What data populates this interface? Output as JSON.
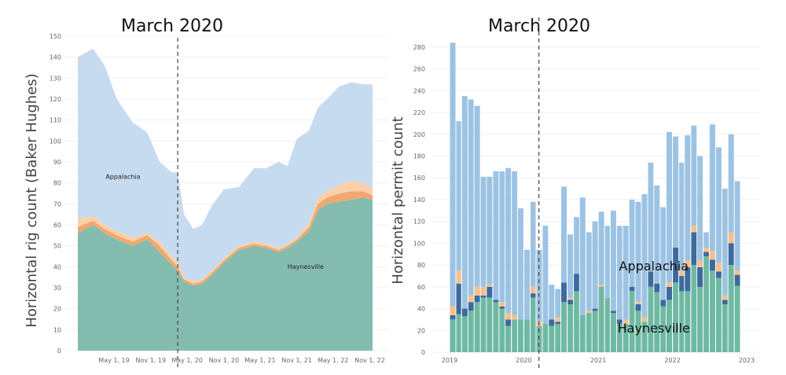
{
  "chart_data": [
    {
      "type": "area",
      "title": "March 2020",
      "ylabel": "Horizontal rig count (Baker Hughes)",
      "xlabel": "",
      "x_range": [
        "2018-11-01",
        "2022-11-15"
      ],
      "ylim": [
        0,
        150
      ],
      "yticks": [
        0,
        10,
        20,
        30,
        40,
        50,
        60,
        70,
        80,
        90,
        100,
        110,
        120,
        130,
        140,
        150
      ],
      "xticks": [
        {
          "date": "2019-05-01",
          "label": "May 1, 19"
        },
        {
          "date": "2019-11-01",
          "label": "Nov 1, 19"
        },
        {
          "date": "2020-05-01",
          "label": "May 1, 20"
        },
        {
          "date": "2020-11-01",
          "label": "Nov 1, 20"
        },
        {
          "date": "2021-05-01",
          "label": "May 1, 21"
        },
        {
          "date": "2021-11-01",
          "label": "Nov 1, 21"
        },
        {
          "date": "2022-05-01",
          "label": "May 1, 22"
        },
        {
          "date": "2022-11-01",
          "label": "Nov 1, 22"
        }
      ],
      "marker_line": {
        "date": "2020-03-15"
      },
      "colors": {
        "haynesville": "#84bcb0",
        "dark_orange": "#f0a870",
        "light_orange": "#fbd0a6",
        "appalachia": "#c6dbef"
      },
      "annotations": [
        {
          "text": "Appalachia",
          "date": "2019-06-15",
          "y": 82
        },
        {
          "text": "Haynesville",
          "date": "2021-12-15",
          "y": 39
        }
      ],
      "series": [
        {
          "name": "Haynesville",
          "x": [
            "2018-11-01",
            "2019-01-15",
            "2019-03-15",
            "2019-05-15",
            "2019-08-01",
            "2019-10-15",
            "2019-12-15",
            "2020-02-15",
            "2020-03-15",
            "2020-04-15",
            "2020-06-01",
            "2020-07-15",
            "2020-09-01",
            "2020-11-01",
            "2021-01-15",
            "2021-04-01",
            "2021-06-01",
            "2021-08-01",
            "2021-09-15",
            "2021-11-01",
            "2022-01-01",
            "2022-02-15",
            "2022-04-01",
            "2022-06-01",
            "2022-08-01",
            "2022-10-01",
            "2022-11-15"
          ],
          "values": [
            56,
            60,
            56,
            53,
            50,
            53,
            47,
            41,
            38,
            33,
            31,
            32,
            36,
            42,
            48,
            50,
            49,
            47,
            49,
            52,
            57,
            67,
            70,
            71,
            72,
            73,
            72
          ]
        },
        {
          "name": "",
          "x": [
            "2018-11-01",
            "2019-01-15",
            "2019-03-15",
            "2019-05-15",
            "2019-08-01",
            "2019-10-15",
            "2019-12-15",
            "2020-02-15",
            "2020-03-15",
            "2020-04-15",
            "2020-06-01",
            "2020-07-15",
            "2020-09-01",
            "2020-11-01",
            "2021-01-15",
            "2021-04-01",
            "2021-06-01",
            "2021-08-01",
            "2021-09-15",
            "2021-11-01",
            "2022-01-01",
            "2022-02-15",
            "2022-04-01",
            "2022-06-01",
            "2022-08-01",
            "2022-10-01",
            "2022-11-15"
          ],
          "values": [
            3,
            2,
            2,
            2,
            2,
            2,
            3,
            2,
            2,
            1,
            1,
            1,
            1,
            1,
            1,
            1,
            1,
            1,
            1,
            1,
            2,
            3,
            3,
            4,
            4,
            3,
            2
          ]
        },
        {
          "name": "",
          "x": [
            "2018-11-01",
            "2019-01-15",
            "2019-03-15",
            "2019-05-15",
            "2019-08-01",
            "2019-10-15",
            "2019-12-15",
            "2020-02-15",
            "2020-03-15",
            "2020-04-15",
            "2020-06-01",
            "2020-07-15",
            "2020-09-01",
            "2020-11-01",
            "2021-01-15",
            "2021-04-01",
            "2021-06-01",
            "2021-08-01",
            "2021-09-15",
            "2021-11-01",
            "2022-01-01",
            "2022-02-15",
            "2022-04-01",
            "2022-06-01",
            "2022-08-01",
            "2022-10-01",
            "2022-11-15"
          ],
          "values": [
            4,
            2,
            2,
            2,
            2,
            1,
            2,
            2,
            2,
            1,
            1,
            1,
            1,
            1,
            1,
            1,
            1,
            1,
            1,
            1,
            2,
            3,
            3,
            4,
            5,
            4,
            3
          ]
        },
        {
          "name": "Appalachia",
          "x": [
            "2018-11-01",
            "2019-01-15",
            "2019-03-15",
            "2019-05-15",
            "2019-08-01",
            "2019-10-15",
            "2019-12-15",
            "2020-02-15",
            "2020-03-15",
            "2020-04-15",
            "2020-06-01",
            "2020-07-15",
            "2020-09-01",
            "2020-11-01",
            "2021-01-15",
            "2021-04-01",
            "2021-06-01",
            "2021-08-01",
            "2021-09-15",
            "2021-11-01",
            "2022-01-01",
            "2022-02-15",
            "2022-04-01",
            "2022-06-01",
            "2022-08-01",
            "2022-10-01",
            "2022-11-15"
          ],
          "values": [
            77,
            80,
            76,
            63,
            55,
            48,
            38,
            40,
            43,
            30,
            25,
            26,
            31,
            33,
            28,
            35,
            36,
            41,
            37,
            47,
            44,
            43,
            44,
            47,
            47,
            47,
            50
          ]
        }
      ]
    },
    {
      "type": "bar",
      "title": "March 2020",
      "ylabel": "Horizontal permit count",
      "xlabel": "",
      "x_range": [
        "2018-12-01",
        "2023-01-01"
      ],
      "ylim": [
        0,
        290
      ],
      "yticks": [
        0,
        20,
        40,
        60,
        80,
        100,
        120,
        140,
        160,
        180,
        200,
        220,
        240,
        260,
        280
      ],
      "xticks": [
        {
          "date": "2019-01-01",
          "label": "2019"
        },
        {
          "date": "2020-01-01",
          "label": "2020"
        },
        {
          "date": "2021-01-01",
          "label": "2021"
        },
        {
          "date": "2022-01-01",
          "label": "2022"
        },
        {
          "date": "2023-01-01",
          "label": "2023"
        }
      ],
      "marker_line": {
        "date": "2020-03-15"
      },
      "colors": {
        "haynesville": "#6fb9a2",
        "navy": "#3d6a9e",
        "orange": "#f7c08c",
        "appalachia": "#9cc3e3"
      },
      "annotations": [
        {
          "text": "Appalachia",
          "date": "2021-10-01",
          "y": 75
        },
        {
          "text": "Haynesville",
          "date": "2021-10-01",
          "y": 18
        }
      ],
      "months": [
        "2019-01",
        "2019-02",
        "2019-03",
        "2019-04",
        "2019-05",
        "2019-06",
        "2019-07",
        "2019-08",
        "2019-09",
        "2019-10",
        "2019-11",
        "2019-12",
        "2020-01",
        "2020-02",
        "2020-03",
        "2020-04",
        "2020-05",
        "2020-06",
        "2020-07",
        "2020-08",
        "2020-09",
        "2020-10",
        "2020-11",
        "2020-12",
        "2021-01",
        "2021-02",
        "2021-03",
        "2021-04",
        "2021-05",
        "2021-06",
        "2021-07",
        "2021-08",
        "2021-09",
        "2021-10",
        "2021-11",
        "2021-12",
        "2022-01",
        "2022-02",
        "2022-03",
        "2022-04",
        "2022-05",
        "2022-06",
        "2022-07",
        "2022-08",
        "2022-09",
        "2022-10",
        "2022-11",
        "2022-12"
      ],
      "series": [
        {
          "name": "Haynesville",
          "values": [
            30,
            35,
            33,
            38,
            46,
            50,
            50,
            46,
            40,
            24,
            30,
            30,
            30,
            50,
            24,
            26,
            24,
            26,
            46,
            44,
            56,
            34,
            36,
            38,
            60,
            50,
            36,
            26,
            26,
            56,
            38,
            28,
            60,
            55,
            42,
            48,
            64,
            56,
            56,
            80,
            60,
            88,
            75,
            68,
            44,
            80,
            61,
            0
          ]
        },
        {
          "name": "",
          "values": [
            4,
            28,
            7,
            8,
            6,
            2,
            10,
            2,
            2,
            6,
            0,
            0,
            0,
            4,
            0,
            0,
            6,
            2,
            18,
            4,
            16,
            0,
            0,
            2,
            0,
            0,
            2,
            4,
            0,
            4,
            6,
            0,
            14,
            8,
            6,
            12,
            32,
            14,
            22,
            30,
            18,
            4,
            10,
            6,
            4,
            20,
            10,
            0
          ]
        },
        {
          "name": "",
          "values": [
            8,
            12,
            0,
            6,
            8,
            8,
            2,
            0,
            4,
            6,
            4,
            0,
            0,
            6,
            4,
            0,
            0,
            4,
            0,
            2,
            0,
            0,
            2,
            0,
            2,
            0,
            0,
            0,
            4,
            0,
            2,
            4,
            0,
            0,
            0,
            4,
            0,
            6,
            6,
            6,
            6,
            4,
            8,
            8,
            4,
            10,
            4,
            0
          ]
        },
        {
          "name": "Appalachia",
          "values": [
            242,
            137,
            195,
            180,
            166,
            101,
            99,
            118,
            120,
            133,
            132,
            102,
            64,
            78,
            66,
            90,
            32,
            26,
            88,
            58,
            52,
            108,
            72,
            80,
            67,
            66,
            92,
            86,
            86,
            80,
            92,
            113,
            100,
            90,
            85,
            138,
            102,
            98,
            115,
            92,
            96,
            14,
            116,
            106,
            98,
            90,
            82,
            0
          ]
        }
      ]
    }
  ]
}
